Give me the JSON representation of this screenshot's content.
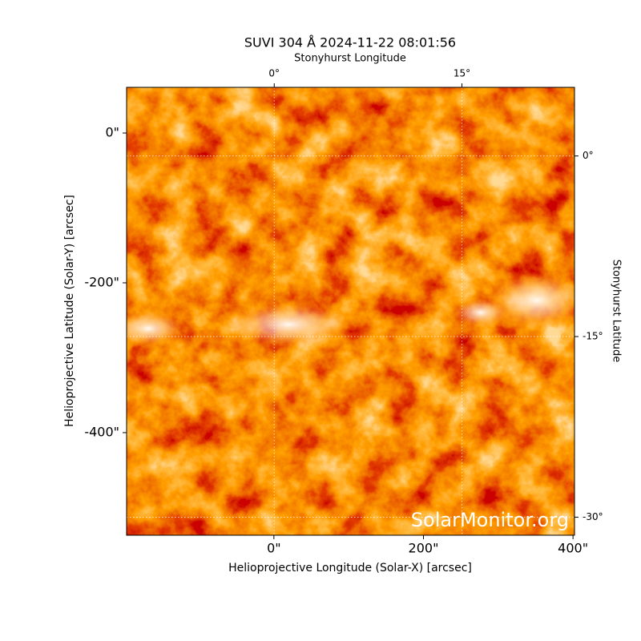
{
  "chart_data": {
    "type": "image",
    "title": "SUVI 304 Å 2024-11-22 08:01:56",
    "xlabel": "Helioprojective Longitude (Solar-X) [arcsec]",
    "ylabel": "Helioprojective Latitude (Solar-Y) [arcsec]",
    "xlim": [
      -197,
      402
    ],
    "ylim": [
      -537,
      61
    ],
    "xticks": [
      {
        "value": 0,
        "label": "0\""
      },
      {
        "value": 200,
        "label": "200\""
      },
      {
        "value": 400,
        "label": "400\""
      }
    ],
    "yticks": [
      {
        "value": 0,
        "label": "0\""
      },
      {
        "value": -200,
        "label": "-200\""
      },
      {
        "value": -400,
        "label": "-400\""
      }
    ],
    "x2label": "Stonyhurst Longitude",
    "y2label": "Stonyhurst Latitude",
    "x2lim": [
      -11.8,
      24
    ],
    "y2lim": [
      -31.5,
      5.7
    ],
    "x2ticks": [
      {
        "value": 0,
        "label": "0°"
      },
      {
        "value": 15,
        "label": "15°"
      }
    ],
    "y2ticks": [
      {
        "value": 0,
        "label": "0°"
      },
      {
        "value": -15,
        "label": "-15°"
      },
      {
        "value": -30,
        "label": "-30°"
      }
    ],
    "grid": true,
    "watermark": "SolarMonitor.org"
  }
}
